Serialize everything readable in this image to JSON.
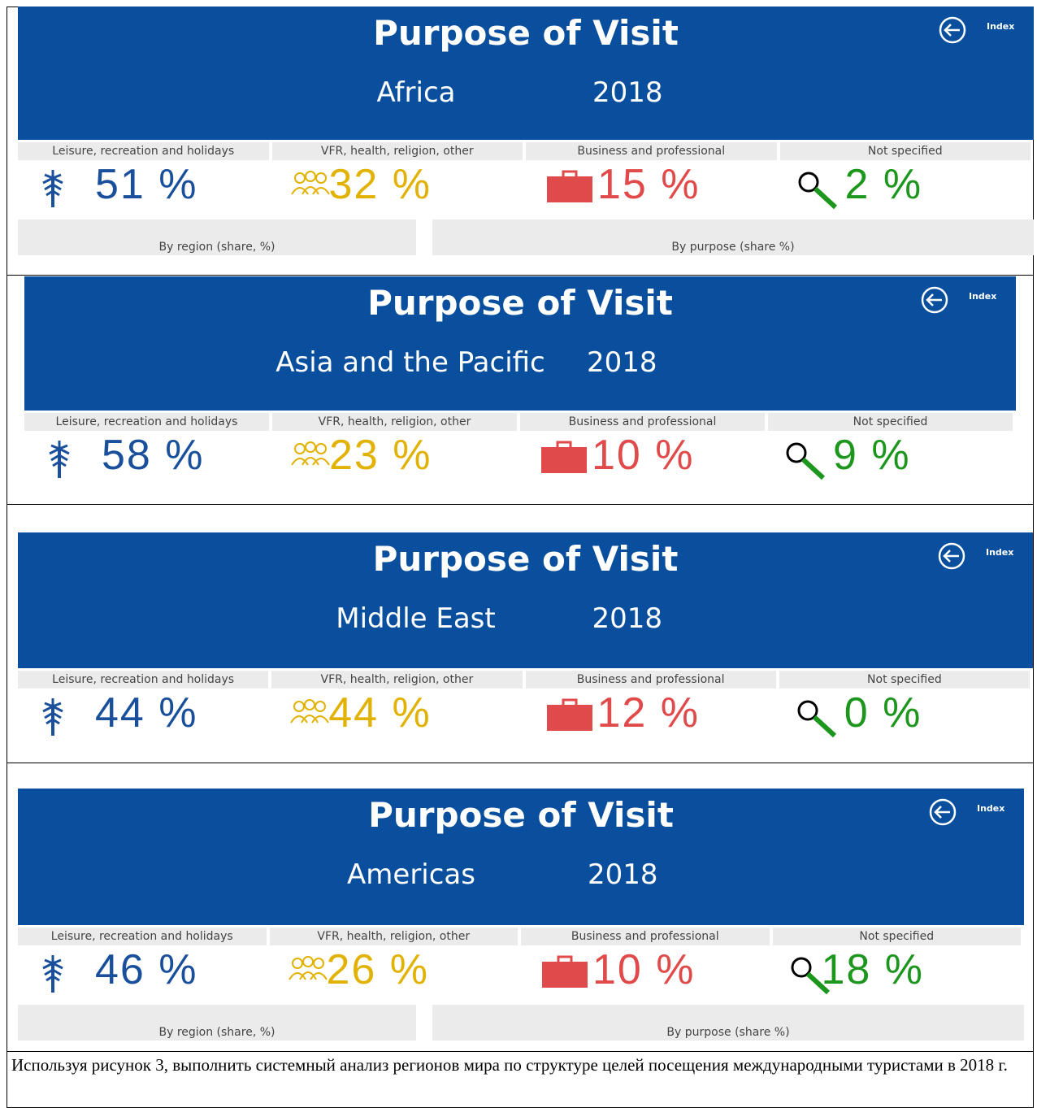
{
  "panels": [
    {
      "title": "Purpose of Visit",
      "region": "Africa",
      "year": "2018",
      "index": "Index",
      "purposes": [
        {
          "label": "Leisure, recreation and holidays",
          "value": "51 %"
        },
        {
          "label": "VFR, health, religion, other",
          "value": "32 %"
        },
        {
          "label": "Business and professional",
          "value": "15 %"
        },
        {
          "label": "Not specified",
          "value": "2 %"
        }
      ],
      "footer_labels": [
        "By region (share, %)",
        "By purpose (share %)"
      ]
    },
    {
      "title": "Purpose of Visit",
      "region": "Asia and the Pacific",
      "year": "2018",
      "index": "Index",
      "purposes": [
        {
          "label": "Leisure, recreation and holidays",
          "value": "58 %"
        },
        {
          "label": "VFR, health, religion, other",
          "value": "23 %"
        },
        {
          "label": "Business and professional",
          "value": "10 %"
        },
        {
          "label": "Not specified",
          "value": "9 %"
        }
      ]
    },
    {
      "title": "Purpose of Visit",
      "region": "Middle East",
      "year": "2018",
      "index": "Index",
      "purposes": [
        {
          "label": "Leisure, recreation and holidays",
          "value": "44 %"
        },
        {
          "label": "VFR, health, religion, other",
          "value": "44 %"
        },
        {
          "label": "Business and professional",
          "value": "12 %"
        },
        {
          "label": "Not specified",
          "value": "0 %"
        }
      ]
    },
    {
      "title": "Purpose of Visit",
      "region": "Americas",
      "year": "2018",
      "index": "Index",
      "purposes": [
        {
          "label": "Leisure, recreation and holidays",
          "value": "46 %"
        },
        {
          "label": "VFR, health, religion, other",
          "value": "26 %"
        },
        {
          "label": "Business and professional",
          "value": "10 %"
        },
        {
          "label": "Not specified",
          "value": "18 %"
        }
      ],
      "footer_labels": [
        "By region (share, %)",
        "By purpose (share %)"
      ]
    }
  ],
  "caption": "Используя рисунок 3, выполнить системный анализ регионов мира по структуре целей посещения международными туристами в 2018 г."
}
